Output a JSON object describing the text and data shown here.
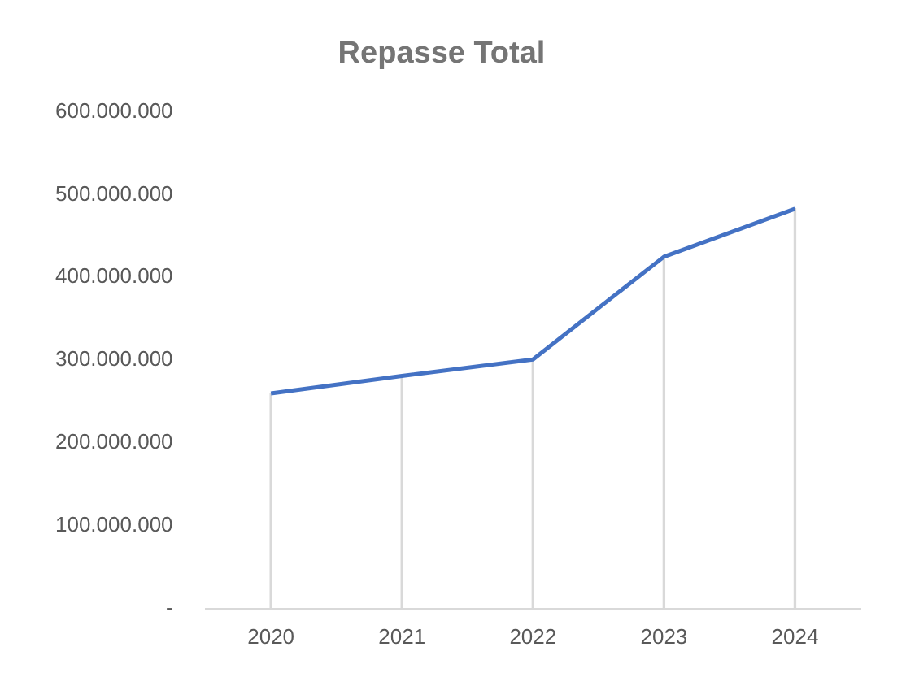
{
  "chart_data": {
    "type": "line",
    "title": "Repasse Total",
    "categories": [
      "2020",
      "2021",
      "2022",
      "2023",
      "2024"
    ],
    "series": [
      {
        "color": "#4472c4",
        "values": [
          260000000,
          281000000,
          301000000,
          425000000,
          483000000
        ]
      },
      {
        "type": "bar",
        "color": "#d9d9d9",
        "values": [
          260000000,
          281000000,
          301000000,
          425000000,
          483000000
        ]
      }
    ],
    "ylim": [
      0,
      600000000
    ],
    "yticks": [
      {
        "value": 0,
        "label": "-"
      },
      {
        "value": 100000000,
        "label": "100.000.000"
      },
      {
        "value": 200000000,
        "label": "200.000.000"
      },
      {
        "value": 300000000,
        "label": "300.000.000"
      },
      {
        "value": 400000000,
        "label": "400.000.000"
      },
      {
        "value": 500000000,
        "label": "500.000.000"
      },
      {
        "value": 600000000,
        "label": "600.000.000"
      }
    ],
    "grid": false,
    "legend": false,
    "marker": "none",
    "line_style": "solid"
  }
}
